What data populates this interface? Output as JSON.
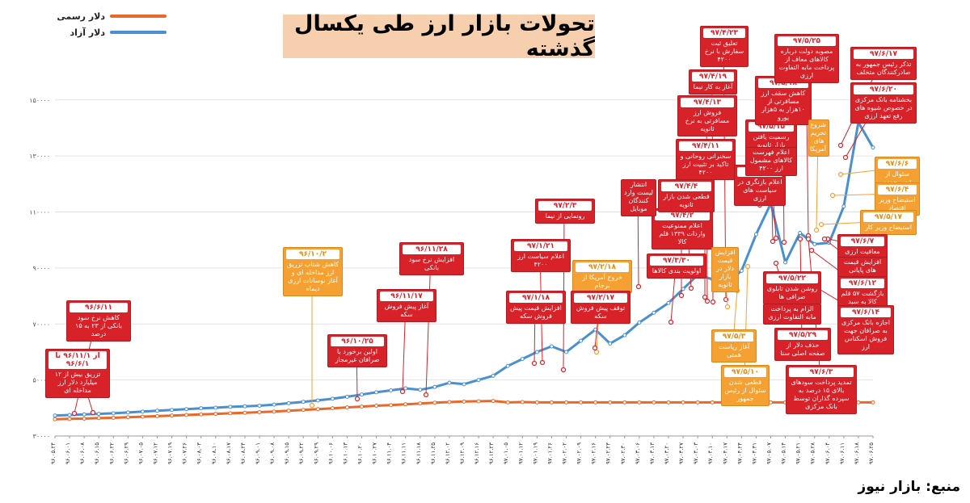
{
  "title": "تحولات بازار ارز طی یکسال گذشته",
  "source": "منبع: بازار نیوز",
  "colors": {
    "official": "#e8692a",
    "free": "#4a8fd0",
    "callout_red": "#d7222a",
    "callout_orange": "#f5a033"
  },
  "chart_data": {
    "type": "line",
    "title": "تحولات بازار ارز طی یکسال گذشته",
    "xlabel": "",
    "ylabel": "",
    "ylim": [
      30000,
      158000
    ],
    "yticks": [
      "۳۰۰۰۰",
      "۵۰۰۰۰",
      "۷۰۰۰۰",
      "۹۰۰۰۰",
      "۱۱۰۰۰۰",
      "۱۳۰۰۰۰",
      "۱۵۰۰۰۰"
    ],
    "ytick_values": [
      30000,
      50000,
      70000,
      90000,
      110000,
      130000,
      150000
    ],
    "grid": true,
    "legend_position": "top-left",
    "x_labels": [
      "۹۶.۰۵.۲۴",
      "۹۶.۰۶.۰۱",
      "۹۶.۰۶.۰۸",
      "۹۶.۰۶.۱۵",
      "۹۶.۰۶.۲۲",
      "۹۶.۰۶.۲۹",
      "۹۶.۰۷.۰۵",
      "۹۶.۰۷.۱۲",
      "۹۶.۰۷.۱۹",
      "۹۶.۰۷.۲۶",
      "۹۶.۰۸.۰۳",
      "۹۶.۰۸.۱۰",
      "۹۶.۰۸.۱۷",
      "۹۶.۰۸.۲۴",
      "۹۶.۰۹.۰۱",
      "۹۶.۰۹.۰۸",
      "۹۶.۰۹.۱۵",
      "۹۶.۰۹.۲۲",
      "۹۶.۰۹.۲۹",
      "۹۶.۱۰.۰۶",
      "۹۶.۱۰.۱۳",
      "۹۶.۱۰.۲۰",
      "۹۶.۱۰.۲۷",
      "۹۶.۱۱.۰۴",
      "۹۶.۱۱.۱۱",
      "۹۶.۱۱.۱۸",
      "۹۶.۱۱.۲۵",
      "۹۶.۱۲.۰۲",
      "۹۶.۱۲.۰۹",
      "۹۶.۱۲.۱۶",
      "۹۶.۱۲.۲۳",
      "۹۷.۰۱.۰۵",
      "۹۷.۰۱.۱۲",
      "۹۷.۰۱.۱۹",
      "۹۷.۰۱.۲۶",
      "۹۷.۰۲.۰۲",
      "۹۷.۰۲.۰۹",
      "۹۷.۰۲.۱۶",
      "۹۷.۰۲.۲۳",
      "۹۷.۰۲.۳۰",
      "۹۷.۰۳.۰۶",
      "۹۷.۰۳.۱۳",
      "۹۷.۰۳.۲۰",
      "۹۷.۰۳.۲۷",
      "۹۷.۰۴.۰۳",
      "۹۷.۰۴.۱۰",
      "۹۷.۰۴.۱۷",
      "۹۷.۰۴.۲۴",
      "۹۷.۰۴.۳۱",
      "۹۷.۰۵.۰۷",
      "۹۷.۰۵.۱۴",
      "۹۷.۰۵.۲۱",
      "۹۷.۰۵.۲۸",
      "۹۷.۰۶.۰۴",
      "۹۷.۰۶.۱۱",
      "۹۷.۰۶.۱۸",
      "۹۷.۰۶.۲۵"
    ],
    "series": [
      {
        "name": "دلار رسمی",
        "color": "#e8692a",
        "values": [
          36000,
          36100,
          36200,
          36400,
          36500,
          36700,
          36900,
          37100,
          37300,
          37500,
          37700,
          37900,
          38100,
          38300,
          38500,
          38700,
          39000,
          39300,
          39600,
          39900,
          40200,
          40500,
          40800,
          41000,
          41300,
          41600,
          41900,
          42100,
          42300,
          42400,
          42500,
          42000,
          42100,
          42000,
          42000,
          42000,
          42000,
          42000,
          42000,
          42000,
          42000,
          42000,
          42000,
          42000,
          42000,
          42000,
          42000,
          42000,
          42000,
          42000,
          42000,
          42000,
          42000,
          42000,
          42000,
          42000,
          42000
        ]
      },
      {
        "name": "دلار آزاد",
        "color": "#4a8fd0",
        "values": [
          37300,
          37500,
          37700,
          37900,
          38100,
          38400,
          38700,
          39000,
          39300,
          39600,
          39900,
          40100,
          40400,
          40600,
          40800,
          41200,
          41700,
          42200,
          42700,
          43300,
          44000,
          44800,
          45600,
          46300,
          47000,
          46500,
          47500,
          49000,
          48500,
          50000,
          51500,
          55000,
          57500,
          60000,
          62000,
          60000,
          64000,
          68000,
          63000,
          66000,
          70500,
          74000,
          77500,
          82500,
          87500,
          86000,
          84500,
          89000,
          102000,
          113000,
          92000,
          102500,
          98500,
          99000,
          112000,
          142000,
          133000
        ]
      }
    ]
  },
  "callouts": [
    {
      "date": "۹۶/۶/۱۱",
      "text": "کاهش نرخ سود بانکی از ۲۳ به ۱۵ درصد",
      "color": "red"
    },
    {
      "date": "از ۹۶/۱۱/۱ تا ۹۶/۶/۱",
      "text": "تزریق بیش از ۱۲ میلیارد دلار ارز مداخله ای",
      "color": "red"
    },
    {
      "date": "۹۶/۱۰/۲",
      "text": "کاهش شتاب تزریق ارز مداخله ای و آغاز نوسانات ارزی دیماه",
      "color": "orange"
    },
    {
      "date": "۹۶/۱۰/۲۵",
      "text": "اولین برخورد با صرافان غیرمجاز",
      "color": "red"
    },
    {
      "date": "۹۶/۱۱/۱۷",
      "text": "آغاز پیش فروش سکه",
      "color": "red"
    },
    {
      "date": "۹۶/۱۱/۲۸",
      "text": "افزایش نرخ سود بانکی",
      "color": "red"
    },
    {
      "date": "۹۷/۱/۱۸",
      "text": "افزایش قیمت پیش فروش سکه",
      "color": "red"
    },
    {
      "date": "۹۷/۱/۲۱",
      "text": "اعلام سیاست ارز ۴۲۰۰",
      "color": "red"
    },
    {
      "date": "۹۷/۲/۳",
      "text": "رونمایی از نیما",
      "color": "red"
    },
    {
      "date": "۹۷/۲/۱۸",
      "text": "خروج آمریکا از برجام",
      "color": "orange"
    },
    {
      "date": "۹۷/۲/۱۷",
      "text": "توقف پیش فروش سکه",
      "color": "red"
    },
    {
      "date": "۹۷/۳/۳۰",
      "text": "اولویت بندی کالاها",
      "color": "red"
    },
    {
      "date": "۹۷/۴/۲",
      "text": "اعلام ممنوعیت واردات ۱۳۳۹ قلم کالا",
      "color": "red"
    },
    {
      "date": "۹۷/۴/۴",
      "text": "قطعی شدن بازار ثانویه",
      "color": "red"
    },
    {
      "date": "",
      "text": "انتشار لیست وارد کنندگان موبایل",
      "color": "red"
    },
    {
      "date": "۹۷/۴/۱۱",
      "text": "سخنرانی روحانی و تاکید بر تثبیت ارز ۴۲۰۰",
      "color": "red"
    },
    {
      "date": "۹۷/۴/۱۳",
      "text": "فروش ارز مسافرتی به نرخ ثانویه",
      "color": "red"
    },
    {
      "date": "۹۷/۴/۱۹",
      "text": "آغاز به کار نیما",
      "color": "red"
    },
    {
      "date": "۹۷/۴/۲۳",
      "text": "تعلیق ثبت سفارش با نرخ ۴۲۰۰",
      "color": "red"
    },
    {
      "date": "",
      "text": "افزایش قیمت دلار در بازار ثانویه",
      "color": "orange"
    },
    {
      "date": "۹۷/۵/۸",
      "text": "اعلام بازنگری در سیاست های ارزی",
      "color": "red"
    },
    {
      "date": "۹۷/۵/۱۵",
      "text": "رسمیت یافتن بازار ثانویه",
      "color": "red"
    },
    {
      "date": "",
      "text": "اعلام فهرست کالاهای مشمول ارز ۴۲۰۰",
      "color": "red"
    },
    {
      "date": "۹۷/۵/۱۸",
      "text": "کاهش سقف ارز مسافرتی از ۱۰هزار به ۵هزار یورو",
      "color": "red"
    },
    {
      "date": "۹۷/۵/۲۵",
      "text": "مصوبه دولت درباره کالاهای معاف از پرداخت مابه التفاوت ارزی",
      "color": "red"
    },
    {
      "date": "",
      "text": "شروع تحریم های آمریکا",
      "color": "orange"
    },
    {
      "date": "۹۷/۶/۱۷",
      "text": "تذکر رئیس جمهور به صادرکنندگان متخلف",
      "color": "red"
    },
    {
      "date": "۹۷/۶/۲۰",
      "text": "بخشنامه بانک مرکزی در خصوص شیوه های رفع تعهد ارزی",
      "color": "red"
    },
    {
      "date": "۹۷/۶/۶",
      "text": "سئوال از رئیس جمهور",
      "color": "orange"
    },
    {
      "date": "۹۷/۶/۴",
      "text": "استیضاح وزیر اقتصاد",
      "color": "orange"
    },
    {
      "date": "۹۷/۵/۱۷",
      "text": "استیضاح وزیر کار",
      "color": "orange"
    },
    {
      "date": "۹۷/۶/۷",
      "text": "معافیت ارزی ۲۳۷۹ قلم کالا",
      "color": "red"
    },
    {
      "date": "",
      "text": "افزایش قیمت های پایانی",
      "color": "red"
    },
    {
      "date": "۹۷/۶/۱۲",
      "text": "بازگشت ۵۷ قلم کالا به سبد ۴۲۰۰",
      "color": "red"
    },
    {
      "date": "۹۷/۶/۱۴",
      "text": "اجازه بانک مرکزی به صرافان جهت فروش اسکناس ارز",
      "color": "red"
    },
    {
      "date": "۹۷/۵/۲۲",
      "text": "روشن شدن تابلوی صرافی ها",
      "color": "red"
    },
    {
      "date": "",
      "text": "الزام به پرداخت مابه التفاوت ارزی",
      "color": "red"
    },
    {
      "date": "۹۷/۵/۳",
      "text": "آغاز ریاست همتی",
      "color": "orange"
    },
    {
      "date": "۹۷/۵/۲۹",
      "text": "حذف دلار از صفحه اصلی سنا",
      "color": "red"
    },
    {
      "date": "۹۷/۵/۱۰",
      "text": "قطعی شدن سئوال از رئیس جمهور",
      "color": "orange"
    },
    {
      "date": "۹۷/۶/۳",
      "text": "تمدید پرداخت سودهای بالای ۱۵ درصد به سپرده گذاران توسط بانک مرکزی",
      "color": "red"
    }
  ]
}
